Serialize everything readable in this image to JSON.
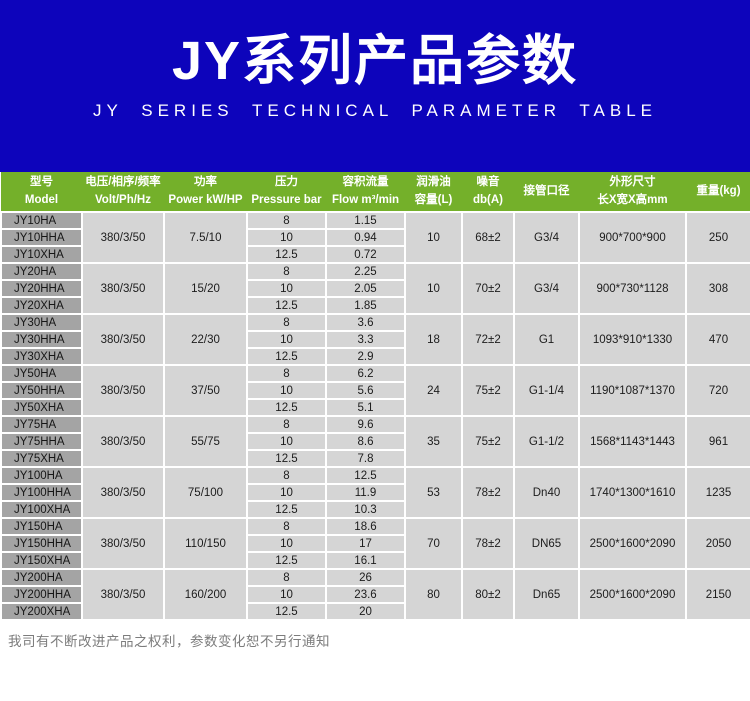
{
  "banner": {
    "title": "JY系列产品参数",
    "subtitle": "JY SERIES TECHNICAL PARAMETER TABLE"
  },
  "table": {
    "headers": [
      {
        "line1": "型号",
        "line2": "Model"
      },
      {
        "line1": "电压/相序/频率",
        "line2": "Volt/Ph/Hz"
      },
      {
        "line1": "功率",
        "line2": "Power kW/HP"
      },
      {
        "line1": "压力",
        "line2": "Pressure bar"
      },
      {
        "line1": "容积流量",
        "line2": "Flow m³/min"
      },
      {
        "line1": "润滑油",
        "line2": "容量(L)"
      },
      {
        "line1": "噪音",
        "line2": "db(A)"
      },
      {
        "line1": "接管口径",
        "line2": ""
      },
      {
        "line1": "外形尺寸",
        "line2": "长X宽X高mm"
      },
      {
        "line1": "重量(kg)",
        "line2": ""
      }
    ],
    "groups": [
      {
        "models": [
          "JY10HA",
          "JY10HHA",
          "JY10XHA"
        ],
        "volt": "380/3/50",
        "power": "7.5/10",
        "pressure": [
          "8",
          "10",
          "12.5"
        ],
        "flow": [
          "1.15",
          "0.94",
          "0.72"
        ],
        "oil": "10",
        "noise": "68±2",
        "pipe": "G3/4",
        "dims": "900*700*900",
        "weight": "250"
      },
      {
        "models": [
          "JY20HA",
          "JY20HHA",
          "JY20XHA"
        ],
        "volt": "380/3/50",
        "power": "15/20",
        "pressure": [
          "8",
          "10",
          "12.5"
        ],
        "flow": [
          "2.25",
          "2.05",
          "1.85"
        ],
        "oil": "10",
        "noise": "70±2",
        "pipe": "G3/4",
        "dims": "900*730*1128",
        "weight": "308"
      },
      {
        "models": [
          "JY30HA",
          "JY30HHA",
          "JY30XHA"
        ],
        "volt": "380/3/50",
        "power": "22/30",
        "pressure": [
          "8",
          "10",
          "12.5"
        ],
        "flow": [
          "3.6",
          "3.3",
          "2.9"
        ],
        "oil": "18",
        "noise": "72±2",
        "pipe": "G1",
        "dims": "1093*910*1330",
        "weight": "470"
      },
      {
        "models": [
          "JY50HA",
          "JY50HHA",
          "JY50XHA"
        ],
        "volt": "380/3/50",
        "power": "37/50",
        "pressure": [
          "8",
          "10",
          "12.5"
        ],
        "flow": [
          "6.2",
          "5.6",
          "5.1"
        ],
        "oil": "24",
        "noise": "75±2",
        "pipe": "G1-1/4",
        "dims": "1190*1087*1370",
        "weight": "720"
      },
      {
        "models": [
          "JY75HA",
          "JY75HHA",
          "JY75XHA"
        ],
        "volt": "380/3/50",
        "power": "55/75",
        "pressure": [
          "8",
          "10",
          "12.5"
        ],
        "flow": [
          "9.6",
          "8.6",
          "7.8"
        ],
        "oil": "35",
        "noise": "75±2",
        "pipe": "G1-1/2",
        "dims": "1568*1143*1443",
        "weight": "961"
      },
      {
        "models": [
          "JY100HA",
          "JY100HHA",
          "JY100XHA"
        ],
        "volt": "380/3/50",
        "power": "75/100",
        "pressure": [
          "8",
          "10",
          "12.5"
        ],
        "flow": [
          "12.5",
          "11.9",
          "10.3"
        ],
        "oil": "53",
        "noise": "78±2",
        "pipe": "Dn40",
        "dims": "1740*1300*1610",
        "weight": "1235"
      },
      {
        "models": [
          "JY150HA",
          "JY150HHA",
          "JY150XHA"
        ],
        "volt": "380/3/50",
        "power": "110/150",
        "pressure": [
          "8",
          "10",
          "12.5"
        ],
        "flow": [
          "18.6",
          "17",
          "16.1"
        ],
        "oil": "70",
        "noise": "78±2",
        "pipe": "DN65",
        "dims": "2500*1600*2090",
        "weight": "2050"
      },
      {
        "models": [
          "JY200HA",
          "JY200HHA",
          "JY200XHA"
        ],
        "volt": "380/3/50",
        "power": "160/200",
        "pressure": [
          "8",
          "10",
          "12.5"
        ],
        "flow": [
          "26",
          "23.6",
          "20"
        ],
        "oil": "80",
        "noise": "80±2",
        "pipe": "Dn65",
        "dims": "2500*1600*2090",
        "weight": "2150"
      }
    ]
  },
  "footer": {
    "note": "我司有不断改进产品之权利，参数变化恕不另行通知"
  },
  "colors": {
    "banner_blue": "#0d04bb",
    "header_green": "#74b02a",
    "model_gray": "#a4a4a4",
    "cell_gray": "#d5d5d5"
  }
}
